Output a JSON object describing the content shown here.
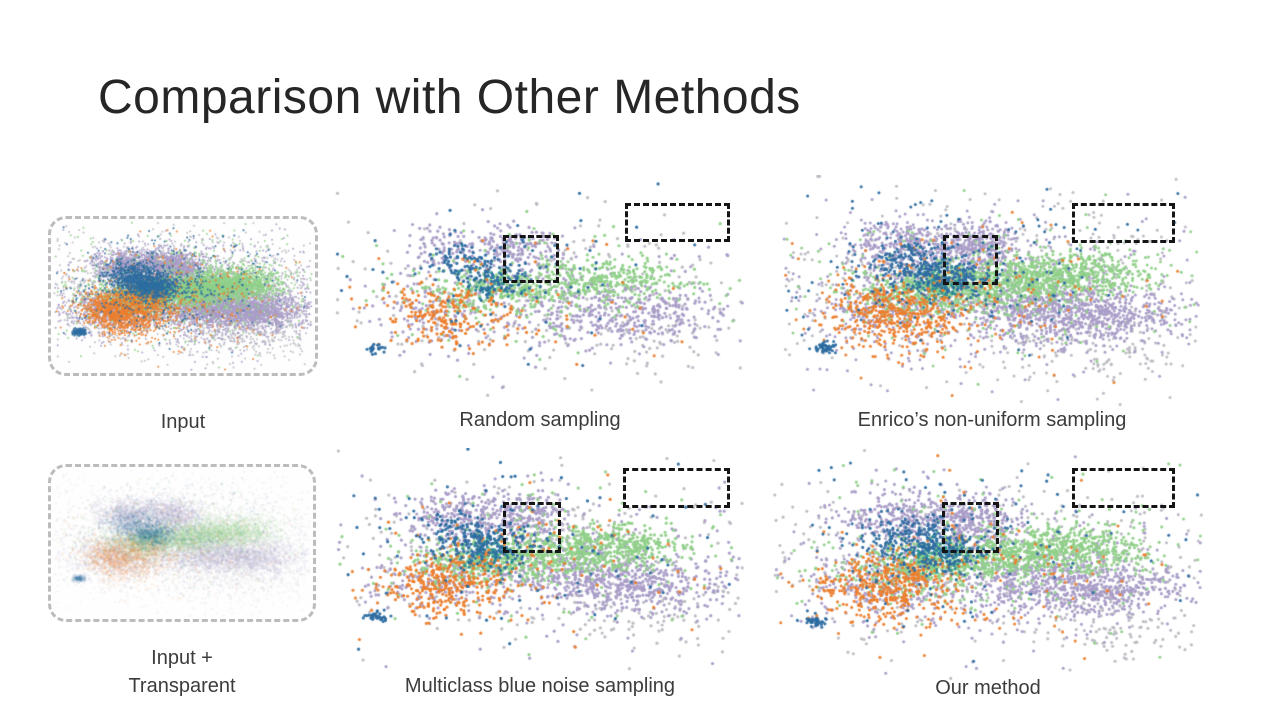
{
  "slide": {
    "title": "Comparison with Other Methods"
  },
  "panels": {
    "input": {
      "caption": "Input",
      "frame": "gray-dashed-rounded",
      "annotations": []
    },
    "input_transparent": {
      "caption": "Input +\nTransparent",
      "frame": "gray-dashed-rounded",
      "annotations": []
    },
    "random": {
      "caption": "Random sampling",
      "annotations": [
        "zoom-square",
        "zoom-rect"
      ]
    },
    "enrico": {
      "caption": "Enrico’s non-uniform sampling",
      "annotations": [
        "zoom-square",
        "zoom-rect"
      ]
    },
    "multiclass": {
      "caption": "Multiclass blue noise sampling",
      "annotations": [
        "zoom-square",
        "zoom-rect"
      ]
    },
    "our": {
      "caption": "Our method",
      "annotations": [
        "zoom-square",
        "zoom-rect"
      ]
    }
  },
  "scatter": {
    "colors": {
      "gray": "#b9b9c2",
      "purple": "#a99cc7",
      "green": "#8fd088",
      "teal": "#2e8e96",
      "orange": "#ec7e2d",
      "blue": "#2d6da1",
      "highlight_box": "#151515",
      "input_frame": "#bcbcbc"
    },
    "draw_order": [
      "gray",
      "purple",
      "green",
      "teal",
      "orange",
      "blue"
    ],
    "classes": {
      "gray": {
        "count": 330,
        "clusters": [
          [
            0.5,
            0.47,
            0.26,
            0.16,
            0.62
          ],
          [
            0.78,
            0.72,
            0.12,
            0.09,
            0.18
          ],
          [
            0.5,
            0.5,
            0.4,
            0.26,
            0.2
          ]
        ]
      },
      "purple": {
        "count": 900,
        "clusters": [
          [
            0.3,
            0.3,
            0.07,
            0.055,
            0.16
          ],
          [
            0.47,
            0.31,
            0.05,
            0.055,
            0.14
          ],
          [
            0.6,
            0.57,
            0.1,
            0.07,
            0.22
          ],
          [
            0.78,
            0.6,
            0.1,
            0.06,
            0.2
          ],
          [
            0.25,
            0.58,
            0.09,
            0.075,
            0.12
          ],
          [
            0.5,
            0.5,
            0.28,
            0.19,
            0.16
          ]
        ]
      },
      "green": {
        "count": 680,
        "clusters": [
          [
            0.44,
            0.48,
            0.11,
            0.045,
            0.3
          ],
          [
            0.6,
            0.44,
            0.09,
            0.05,
            0.25
          ],
          [
            0.73,
            0.42,
            0.08,
            0.05,
            0.18
          ],
          [
            0.33,
            0.52,
            0.07,
            0.05,
            0.12
          ],
          [
            0.5,
            0.45,
            0.28,
            0.17,
            0.15
          ]
        ]
      },
      "teal": {
        "count": 55,
        "clusters": [
          [
            0.38,
            0.46,
            0.035,
            0.035,
            1.0
          ]
        ]
      },
      "orange": {
        "count": 270,
        "clusters": [
          [
            0.22,
            0.58,
            0.055,
            0.06,
            0.32
          ],
          [
            0.33,
            0.56,
            0.06,
            0.06,
            0.28
          ],
          [
            0.28,
            0.68,
            0.07,
            0.05,
            0.15
          ],
          [
            0.45,
            0.52,
            0.22,
            0.16,
            0.25
          ]
        ]
      },
      "blue": {
        "count": 240,
        "clusters": [
          [
            0.32,
            0.38,
            0.055,
            0.05,
            0.38
          ],
          [
            0.4,
            0.44,
            0.05,
            0.045,
            0.25
          ],
          [
            0.1,
            0.74,
            0.013,
            0.011,
            0.09
          ],
          [
            0.42,
            0.42,
            0.22,
            0.17,
            0.28
          ]
        ]
      }
    },
    "panel_render": [
      {
        "id": "input",
        "seed": 42,
        "density": 6.5,
        "radius": 1.0,
        "alpha": 0.9
      },
      {
        "id": "input_t",
        "seed": 42,
        "density": 6.5,
        "radius": 1.25,
        "alpha": 0.1
      },
      {
        "id": "random",
        "seed": 7,
        "density": 1.0,
        "radius": 1.6,
        "alpha": 0.95
      },
      {
        "id": "enrico",
        "seed": 13,
        "density": 2.3,
        "radius": 1.5,
        "alpha": 0.95
      },
      {
        "id": "multiclass",
        "seed": 29,
        "density": 1.55,
        "radius": 1.6,
        "alpha": 0.95
      },
      {
        "id": "our",
        "seed": 77,
        "density": 2.0,
        "radius": 1.55,
        "alpha": 0.95
      }
    ]
  }
}
